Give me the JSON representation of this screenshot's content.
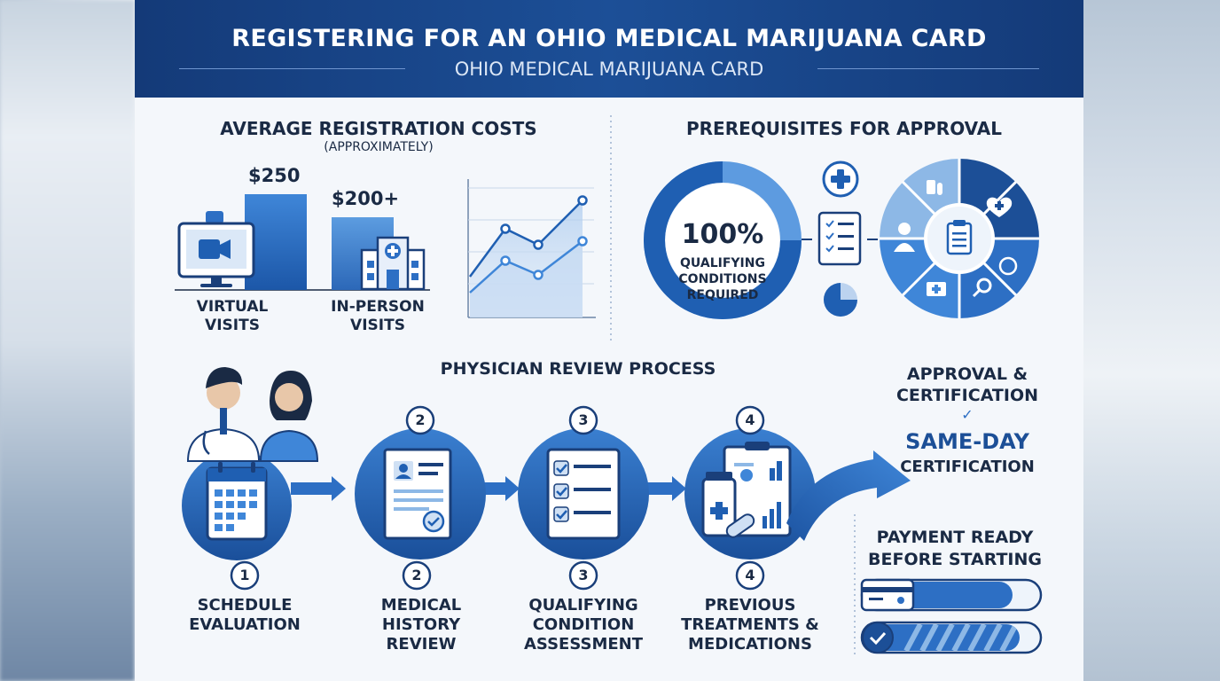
{
  "header": {
    "title": "REGISTERING FOR AN OHIO MEDICAL MARIJUANA CARD",
    "subtitle": "OHIO MEDICAL MARIJUANA CARD"
  },
  "costs": {
    "title": "AVERAGE REGISTRATION COSTS",
    "note": "(APPROXIMATELY)",
    "virtual_price": "$250",
    "virtual_label": [
      "VIRTUAL",
      "VISITS"
    ],
    "inperson_price": "$200+",
    "inperson_label": [
      "IN-PERSON",
      "VISITS"
    ]
  },
  "prereq": {
    "title": "PREREQUISITES FOR APPROVAL",
    "percent": "100%",
    "lines": [
      "QUALIFYING",
      "CONDITIONS",
      "REQUIRED"
    ]
  },
  "process": {
    "title": "PHYSICIAN REVIEW PROCESS",
    "steps": [
      {
        "num": "1",
        "label": [
          "SCHEDULE",
          "EVALUATION"
        ]
      },
      {
        "num": "2",
        "label": [
          "MEDICAL",
          "HISTORY",
          "REVIEW"
        ]
      },
      {
        "num": "3",
        "label": [
          "QUALIFYING",
          "CONDITION",
          "ASSESSMENT"
        ]
      },
      {
        "num": "4",
        "label": [
          "PREVIOUS",
          "TREATMENTS &",
          "MEDICATIONS"
        ]
      }
    ]
  },
  "approval": {
    "title": [
      "APPROVAL &",
      "CERTIFICATION"
    ],
    "check": "✓",
    "same_day": "SAME-DAY",
    "cert": "CERTIFICATION"
  },
  "payment": {
    "title": [
      "PAYMENT READY",
      "BEFORE STARTING"
    ]
  },
  "colors": {
    "navy": "#143a78",
    "blue": "#2d6fc4",
    "light": "#8db8e6",
    "text": "#1a2a44"
  }
}
